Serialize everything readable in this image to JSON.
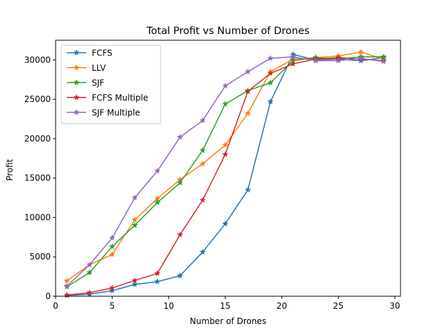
{
  "chart_data": {
    "type": "line",
    "title": "Total Profit vs Number of Drones",
    "xlabel": "Number of Drones",
    "ylabel": "Profit",
    "xlim": [
      0,
      30.5
    ],
    "ylim": [
      0,
      32500
    ],
    "xticks": [
      0,
      5,
      10,
      15,
      20,
      25,
      30
    ],
    "yticks": [
      0,
      5000,
      10000,
      15000,
      20000,
      25000,
      30000
    ],
    "legend_position": "top-left",
    "x": [
      1,
      3,
      5,
      7,
      9,
      11,
      13,
      15,
      17,
      19,
      21,
      23,
      25,
      27,
      29
    ],
    "series": [
      {
        "name": "FCFS",
        "color": "#1f77b4",
        "values": [
          100,
          250,
          700,
          1500,
          1850,
          2600,
          5600,
          9200,
          13500,
          24700,
          30700,
          30000,
          30100,
          29900,
          30300
        ]
      },
      {
        "name": "LLV",
        "color": "#ff7f0e",
        "values": [
          1950,
          4000,
          5300,
          9700,
          12400,
          14800,
          16800,
          19200,
          23200,
          28500,
          30100,
          30300,
          30500,
          31000,
          30100
        ]
      },
      {
        "name": "SJF",
        "color": "#2ca02c",
        "values": [
          1200,
          3000,
          6300,
          9000,
          11900,
          14400,
          18500,
          24400,
          26100,
          27100,
          29900,
          30300,
          30100,
          30400,
          30400
        ]
      },
      {
        "name": "FCFS Multiple",
        "color": "#d62728",
        "values": [
          150,
          450,
          1050,
          2000,
          2900,
          7800,
          12200,
          18000,
          26000,
          28300,
          29500,
          30100,
          30300,
          30100,
          29900
        ]
      },
      {
        "name": "SJF Multiple",
        "color": "#9467bd",
        "values": [
          1300,
          4000,
          7400,
          12500,
          15900,
          20200,
          22300,
          26700,
          28500,
          30200,
          30400,
          29900,
          29900,
          30200,
          29800
        ]
      }
    ]
  }
}
